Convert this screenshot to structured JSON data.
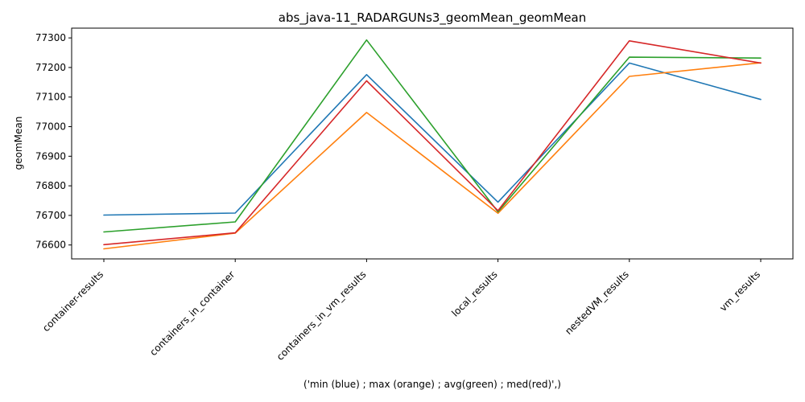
{
  "chart_data": {
    "type": "line",
    "title": "abs_java-11_RADARGUNs3_geomMean_geomMean",
    "xlabel": "('min (blue) ; max (orange) ; avg(green) ; med(red)',)",
    "ylabel": "geomMean",
    "categories": [
      "container-results",
      "containers_in_container",
      "containers_in_vm_results",
      "local_results",
      "nestedVM_results",
      "vm_results"
    ],
    "ylim": [
      76553,
      77333
    ],
    "yticks": [
      76600,
      76700,
      76800,
      76900,
      77000,
      77100,
      77200,
      77300
    ],
    "grid": false,
    "series": [
      {
        "color": "#1f77b4",
        "values": [
          76701,
          76708,
          77176,
          76745,
          77215,
          77092
        ]
      },
      {
        "color": "#ff7f0e",
        "values": [
          76587,
          76640,
          77048,
          76707,
          77170,
          77216
        ]
      },
      {
        "color": "#2ca02c",
        "values": [
          76644,
          76678,
          77293,
          76712,
          77235,
          77232
        ]
      },
      {
        "color": "#d62728",
        "values": [
          76601,
          76641,
          77155,
          76716,
          77290,
          77215
        ]
      }
    ]
  }
}
